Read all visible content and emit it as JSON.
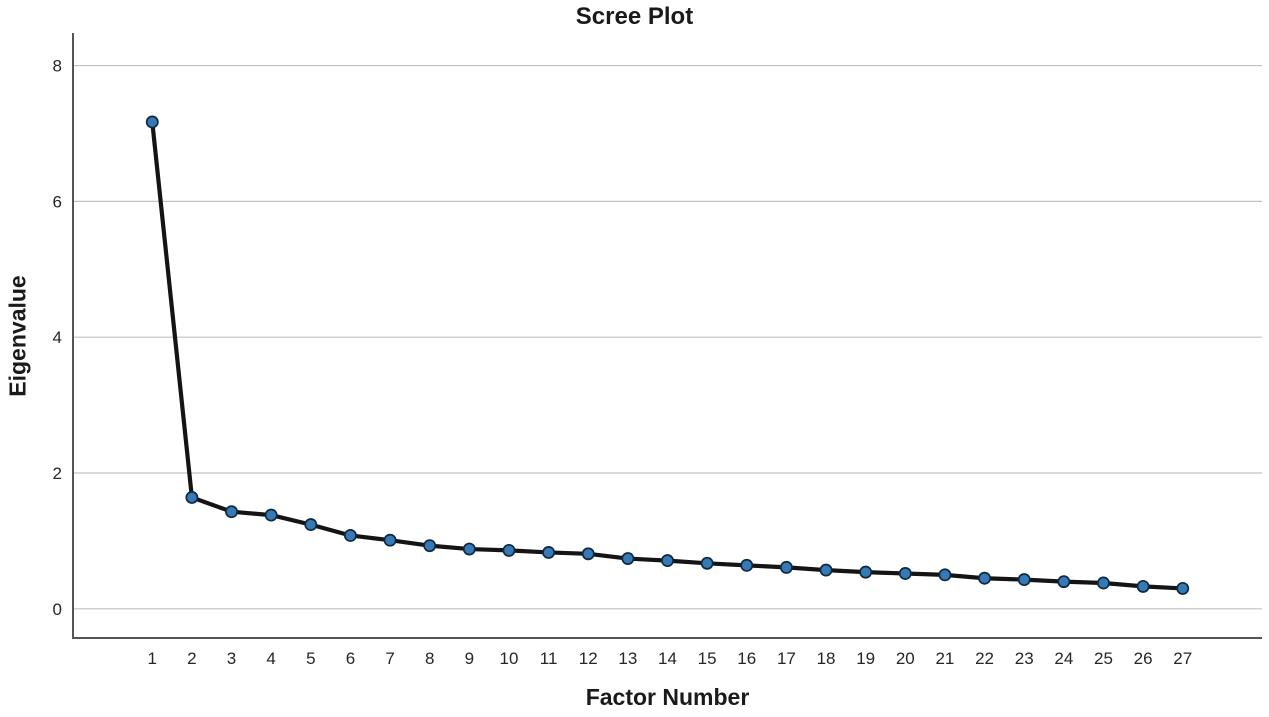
{
  "chart_data": {
    "type": "line",
    "title": "Scree Plot",
    "xlabel": "Factor Number",
    "ylabel": "Eigenvalue",
    "x": [
      1,
      2,
      3,
      4,
      5,
      6,
      7,
      8,
      9,
      10,
      11,
      12,
      13,
      14,
      15,
      16,
      17,
      18,
      19,
      20,
      21,
      22,
      23,
      24,
      25,
      26,
      27
    ],
    "y": [
      7.17,
      1.64,
      1.43,
      1.38,
      1.24,
      1.08,
      1.01,
      0.93,
      0.88,
      0.86,
      0.83,
      0.81,
      0.74,
      0.71,
      0.67,
      0.64,
      0.61,
      0.57,
      0.54,
      0.52,
      0.5,
      0.45,
      0.43,
      0.4,
      0.38,
      0.33,
      0.3
    ],
    "xticks": [
      1,
      2,
      3,
      4,
      5,
      6,
      7,
      8,
      9,
      10,
      11,
      12,
      13,
      14,
      15,
      16,
      17,
      18,
      19,
      20,
      21,
      22,
      23,
      24,
      25,
      26,
      27
    ],
    "yticks": [
      0,
      2,
      4,
      6,
      8
    ],
    "xlim": [
      -1,
      29
    ],
    "ylim": [
      -0.43,
      8.48
    ],
    "grid": "horizontal",
    "legend": "none",
    "colors": {
      "line": "#141414",
      "marker_fill": "#3679b5",
      "marker_edge": "#0e2a40",
      "grid": "#c2c2c2",
      "axis": "#555555",
      "text": "#262626"
    }
  }
}
